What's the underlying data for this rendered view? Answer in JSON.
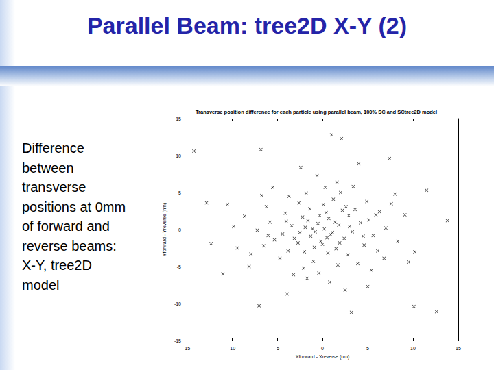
{
  "slide": {
    "title": "Parallel Beam: tree2D X-Y (2)",
    "text": "Difference between transverse positions at 0mm of forward and reverse beams: X-Y, tree2D model"
  },
  "chart_data": {
    "type": "scatter",
    "title": "Transverse position difference for each particle using parallel beam, 100% SC and SCtree2D model",
    "x_label": "Xforward - Xreverse (nm)",
    "y_label": "Yforward - Yreverse (nm)",
    "marker": "x",
    "color": "#000000",
    "grid": false,
    "xlim": [
      -15,
      15
    ],
    "xticks": [
      -15,
      -10,
      -5,
      0,
      5,
      10,
      15
    ],
    "ylim": [
      -15,
      15
    ],
    "yticks": [
      -15,
      -10,
      -5,
      0,
      5,
      10,
      15
    ],
    "x": [
      0.2,
      -0.5,
      1.1,
      -1.3,
      0.7,
      -0.2,
      1.8,
      -1.9,
      2.4,
      -2.2,
      0.4,
      -0.9,
      2.9,
      -2.7,
      1.5,
      -1.4,
      3.3,
      -3.4,
      0.1,
      0.6,
      -3.8,
      3.6,
      -2.6,
      2.8,
      4.2,
      -4.4,
      1.2,
      -1.0,
      4.6,
      -4.1,
      5.1,
      -5.3,
      2.0,
      -2.1,
      5.6,
      -5.8,
      0.3,
      -0.4,
      4.9,
      -4.7,
      3.9,
      -3.7,
      6.3,
      -6.5,
      6.1,
      -6.2,
      1.6,
      -1.7,
      7.0,
      -7.2,
      0.8,
      -0.6,
      7.6,
      -7.9,
      5.4,
      -5.5,
      8.3,
      -8.6,
      2.5,
      -2.4,
      9.1,
      -9.4,
      4.0,
      -3.9,
      10.2,
      -10.5,
      1.0,
      2.1,
      -14.2,
      -12.3,
      -7.0,
      3.2,
      10.1,
      12.6,
      -12.8,
      11.5,
      -11.0,
      13.8,
      -6.8,
      7.4,
      0.9,
      -1.6,
      1.4,
      -0.8,
      0.5,
      -1.1,
      2.2,
      -2.5,
      0.0,
      1.9,
      -0.3,
      3.0,
      -3.1,
      2.6,
      -2.0,
      4.5,
      -4.0,
      1.7,
      -1.8,
      5.9,
      -6.0,
      3.4,
      -3.2,
      6.8,
      -6.7,
      8.0,
      -8.1,
      9.5,
      -9.8,
      5.0
    ],
    "values": [
      0.1,
      0.8,
      -0.4,
      -0.9,
      1.5,
      -1.6,
      0.6,
      0.3,
      -1.2,
      1.7,
      2.3,
      -2.4,
      1.9,
      -1.8,
      -2.6,
      2.8,
      -0.3,
      0.5,
      3.4,
      -3.2,
      -2.9,
      2.7,
      3.6,
      -3.4,
      0.9,
      -0.6,
      4.1,
      -4.3,
      -2.1,
      2.2,
      1.3,
      -1.4,
      5.0,
      -5.2,
      -0.8,
      1.0,
      5.7,
      -5.9,
      3.8,
      -3.9,
      -4.6,
      4.5,
      2.4,
      -2.2,
      -2.9,
      3.1,
      6.4,
      -6.6,
      0.2,
      -0.1,
      -7.1,
      7.3,
      3.5,
      -3.3,
      -5.5,
      5.7,
      -1.6,
      1.8,
      -8.2,
      8.4,
      2.0,
      -2.5,
      8.9,
      -8.7,
      -3.0,
      3.4,
      12.8,
      12.3,
      10.6,
      -1.9,
      -10.3,
      -11.2,
      -10.4,
      -11.1,
      3.6,
      5.3,
      -6.0,
      1.2,
      10.8,
      9.6,
      -0.7,
      1.2,
      1.0,
      -0.3,
      -1.1,
      0.1,
      2.6,
      -0.4,
      -2.0,
      -1.8,
      1.9,
      0.4,
      -1.2,
      3.1,
      -3.0,
      -0.9,
      1.1,
      -4.8,
      4.9,
      2.0,
      -0.8,
      5.8,
      -6.1,
      -3.9,
      4.6,
      4.8,
      -5.0,
      -4.4,
      0.4,
      -7.7
    ]
  }
}
